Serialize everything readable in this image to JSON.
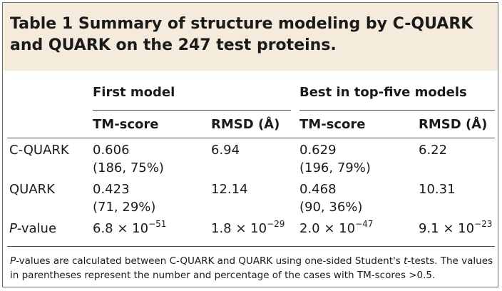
{
  "table": {
    "caption": "Table 1 Summary of structure modeling by C-QUARK and QUARK on the 247 test proteins.",
    "group_headers": [
      "First model",
      "Best in top-five models"
    ],
    "sub_headers": [
      "TM-score",
      "RMSD (Å)",
      "TM-score",
      "RMSD (Å)"
    ],
    "rows": [
      {
        "label": "C-QUARK",
        "first_tm": "0.606",
        "first_tm_detail": "(186, 75%)",
        "first_rmsd": "6.94",
        "best_tm": "0.629",
        "best_tm_detail": "(196, 79%)",
        "best_rmsd": "6.22"
      },
      {
        "label": "QUARK",
        "first_tm": "0.423",
        "first_tm_detail": "(71, 29%)",
        "first_rmsd": "12.14",
        "best_tm": "0.468",
        "best_tm_detail": "(90, 36%)",
        "best_rmsd": "10.31"
      }
    ],
    "pvalue_row": {
      "label_italic": "P",
      "label_rest": "-value",
      "first_tm_base": "6.8 × 10",
      "first_tm_exp": "−51",
      "first_rmsd_base": "1.8 × 10",
      "first_rmsd_exp": "−29",
      "best_tm_base": "2.0 × 10",
      "best_tm_exp": "−47",
      "best_rmsd_base": "9.1 × 10",
      "best_rmsd_exp": "−23"
    },
    "footnote": {
      "p_italic": "P",
      "part1": "-values are calculated between C-QUARK and QUARK using one-sided Student's ",
      "t_italic": "t",
      "part2": "-tests. The values in parentheses represent the number and percentage of the cases with TM-scores >0.5."
    }
  }
}
